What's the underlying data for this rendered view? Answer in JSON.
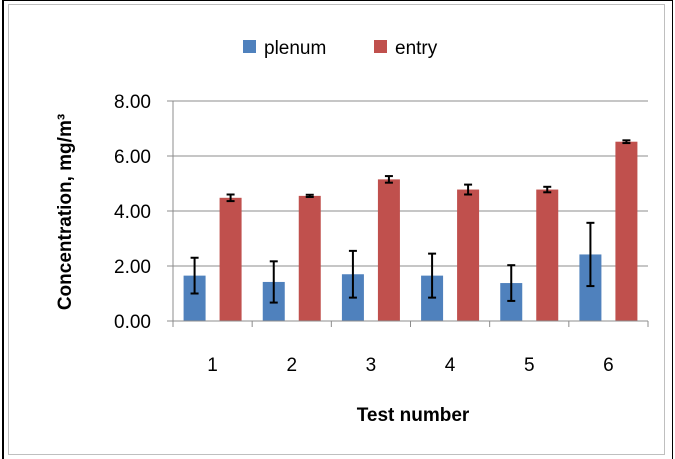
{
  "chart_data": {
    "type": "bar",
    "categories": [
      "1",
      "2",
      "3",
      "4",
      "5",
      "6"
    ],
    "series": [
      {
        "name": "plenum",
        "color": "#4f81bd",
        "values": [
          1.65,
          1.42,
          1.7,
          1.65,
          1.38,
          2.42
        ],
        "errors": [
          0.65,
          0.75,
          0.85,
          0.8,
          0.65,
          1.15
        ]
      },
      {
        "name": "entry",
        "color": "#c0504d",
        "values": [
          4.48,
          4.55,
          5.15,
          4.78,
          4.78,
          6.52
        ],
        "errors": [
          0.12,
          0.04,
          0.12,
          0.18,
          0.1,
          0.05
        ]
      }
    ],
    "ylim": [
      0,
      8
    ],
    "yticks": [
      "0.00",
      "2.00",
      "4.00",
      "6.00",
      "8.00"
    ],
    "ytick_values": [
      0,
      2,
      4,
      6,
      8
    ],
    "xlabel": "Test number",
    "ylabel": "Concentration, mg/m³",
    "grid": true,
    "legend_position": "top"
  }
}
